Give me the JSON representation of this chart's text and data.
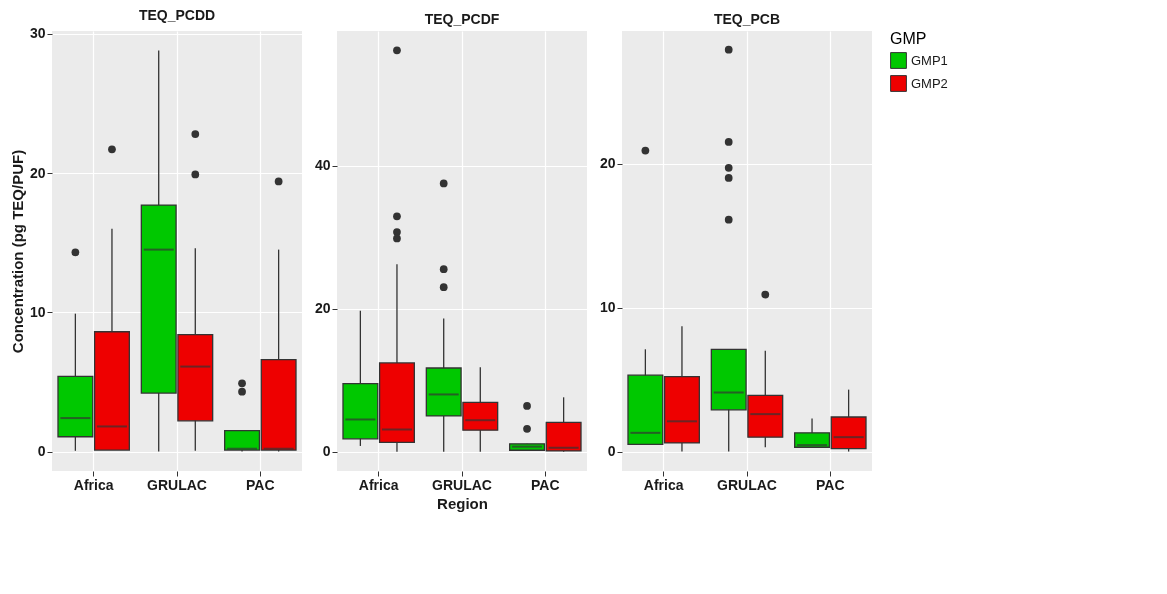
{
  "chart_data": [
    {
      "type": "box",
      "title": "TEQ_PCDD",
      "ylabel": "Concentration (pg TEQ/PUF)",
      "categories": [
        "Africa",
        "GRULAC",
        "PAC"
      ],
      "ylim": [
        -1.4,
        30.2
      ],
      "yticks": [
        0,
        10,
        20,
        30
      ],
      "grid": true,
      "legend": "right",
      "series": [
        {
          "name": "GMP1",
          "color": "#00c800",
          "boxes": [
            {
              "low": 0.05,
              "q1": 1.06,
              "median": 2.4,
              "q3": 5.4,
              "high": 9.9,
              "outliers": [
                14.3
              ]
            },
            {
              "low": 0,
              "q1": 4.2,
              "median": 14.5,
              "q3": 17.7,
              "high": 28.8
            },
            {
              "low": 0,
              "q1": 0.1,
              "median": 0.2,
              "q3": 1.5,
              "high": 1.5,
              "outliers": [
                4.9,
                4.3
              ]
            }
          ]
        },
        {
          "name": "GMP2",
          "color": "#ee0000",
          "boxes": [
            {
              "low": 0.1,
              "q1": 0.1,
              "median": 1.8,
              "q3": 8.6,
              "high": 16.0,
              "outliers": [
                21.7
              ]
            },
            {
              "low": 0.05,
              "q1": 2.2,
              "median": 6.1,
              "q3": 8.4,
              "high": 14.6,
              "outliers": [
                22.8,
                19.9
              ]
            },
            {
              "low": 0,
              "q1": 0.1,
              "median": 0.2,
              "q3": 6.6,
              "high": 14.5,
              "outliers": [
                19.4
              ]
            }
          ]
        }
      ]
    },
    {
      "type": "box",
      "title": "TEQ_PCDF",
      "xlabel": "Region",
      "categories": [
        "Africa",
        "GRULAC",
        "PAC"
      ],
      "ylim": [
        -2.7,
        58.8
      ],
      "yticks": [
        0,
        20,
        40
      ],
      "grid": true,
      "legend": "right",
      "series": [
        {
          "name": "GMP1",
          "color": "#00c800",
          "boxes": [
            {
              "low": 0.8,
              "q1": 1.8,
              "median": 4.5,
              "q3": 9.5,
              "high": 19.7
            },
            {
              "low": 0,
              "q1": 5.0,
              "median": 8.0,
              "q3": 11.7,
              "high": 18.6,
              "outliers": [
                37.5,
                25.5,
                23.0
              ]
            },
            {
              "low": 0.1,
              "q1": 0.2,
              "median": 0.7,
              "q3": 1.1,
              "high": 1.1,
              "outliers": [
                6.4,
                3.2
              ]
            }
          ]
        },
        {
          "name": "GMP2",
          "color": "#ee0000",
          "boxes": [
            {
              "low": 0,
              "q1": 1.3,
              "median": 3.1,
              "q3": 12.4,
              "high": 26.2,
              "outliers": [
                56.1,
                32.9,
                30.7,
                29.8
              ]
            },
            {
              "low": 0,
              "q1": 3.0,
              "median": 4.4,
              "q3": 6.9,
              "high": 11.8
            },
            {
              "low": 0,
              "q1": 0.1,
              "median": 0.55,
              "q3": 4.1,
              "high": 7.6
            }
          ]
        }
      ]
    },
    {
      "type": "box",
      "title": "TEQ_PCB",
      "categories": [
        "Africa",
        "GRULAC",
        "PAC"
      ],
      "ylim": [
        -1.35,
        29.2
      ],
      "yticks": [
        0,
        10,
        20
      ],
      "grid": true,
      "legend": "right",
      "legend_title": "GMP",
      "series": [
        {
          "name": "GMP1",
          "color": "#00c800",
          "boxes": [
            {
              "low": 0.5,
              "q1": 0.5,
              "median": 1.3,
              "q3": 5.3,
              "high": 7.1,
              "outliers": [
                20.9
              ]
            },
            {
              "low": 0,
              "q1": 2.9,
              "median": 4.1,
              "q3": 7.1,
              "high": 7.1,
              "outliers": [
                27.9,
                21.5,
                19.7,
                19.0,
                16.1
              ]
            },
            {
              "low": 0.3,
              "q1": 0.3,
              "median": 0.45,
              "q3": 1.3,
              "high": 2.3
            }
          ]
        },
        {
          "name": "GMP2",
          "color": "#ee0000",
          "boxes": [
            {
              "low": 0,
              "q1": 0.6,
              "median": 2.1,
              "q3": 5.2,
              "high": 8.7
            },
            {
              "low": 0.3,
              "q1": 1.0,
              "median": 2.6,
              "q3": 3.9,
              "high": 7.0,
              "outliers": [
                10.9
              ]
            },
            {
              "low": 0,
              "q1": 0.2,
              "median": 1.0,
              "q3": 2.4,
              "high": 4.3
            }
          ]
        }
      ]
    }
  ]
}
